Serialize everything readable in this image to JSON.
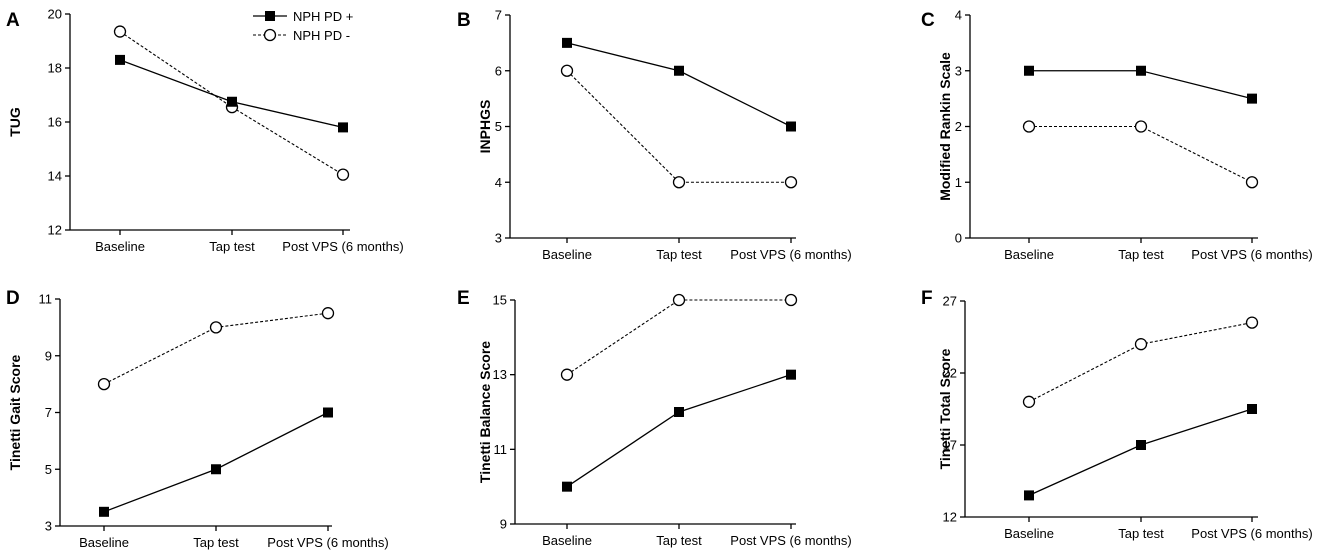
{
  "chart_data": [
    {
      "type": "line",
      "panel_label": "A",
      "ylabel": "TUG",
      "categories": [
        "Baseline",
        "Tap test",
        "Post VPS (6 months)"
      ],
      "ylim": [
        12,
        20
      ],
      "yticks": [
        12,
        14,
        16,
        18,
        20
      ],
      "series": [
        {
          "name": "NPH PD +",
          "marker": "filled-square",
          "line": "solid",
          "values": [
            18.3,
            16.75,
            15.8
          ]
        },
        {
          "name": "NPH PD -",
          "marker": "open-circle",
          "line": "dashed",
          "values": [
            19.35,
            16.55,
            14.05
          ]
        }
      ],
      "legend": {
        "position": "top-right",
        "entries": [
          "NPH PD +",
          "NPH PD -"
        ]
      }
    },
    {
      "type": "line",
      "panel_label": "B",
      "ylabel": "INPHGS",
      "categories": [
        "Baseline",
        "Tap test",
        "Post VPS (6 months)"
      ],
      "ylim": [
        3,
        7
      ],
      "yticks": [
        3,
        4,
        5,
        6,
        7
      ],
      "series": [
        {
          "name": "NPH PD +",
          "marker": "filled-square",
          "line": "solid",
          "values": [
            6.5,
            6,
            5
          ]
        },
        {
          "name": "NPH PD -",
          "marker": "open-circle",
          "line": "dashed",
          "values": [
            6,
            4,
            4
          ]
        }
      ]
    },
    {
      "type": "line",
      "panel_label": "C",
      "ylabel": "Modified Rankin Scale",
      "categories": [
        "Baseline",
        "Tap test",
        "Post VPS (6 months)"
      ],
      "ylim": [
        0,
        4
      ],
      "yticks": [
        0,
        1,
        2,
        3,
        4
      ],
      "series": [
        {
          "name": "NPH PD +",
          "marker": "filled-square",
          "line": "solid",
          "values": [
            3,
            3,
            2.5
          ]
        },
        {
          "name": "NPH PD -",
          "marker": "open-circle",
          "line": "dashed",
          "values": [
            2,
            2,
            1
          ]
        }
      ]
    },
    {
      "type": "line",
      "panel_label": "D",
      "ylabel": "Tinetti Gait Score",
      "categories": [
        "Baseline",
        "Tap test",
        "Post VPS (6 months)"
      ],
      "ylim": [
        3,
        11
      ],
      "yticks": [
        3,
        5,
        7,
        9,
        11
      ],
      "series": [
        {
          "name": "NPH PD +",
          "marker": "filled-square",
          "line": "solid",
          "values": [
            3.5,
            5,
            7
          ]
        },
        {
          "name": "NPH PD -",
          "marker": "open-circle",
          "line": "dashed",
          "values": [
            8,
            10,
            10.5
          ]
        }
      ]
    },
    {
      "type": "line",
      "panel_label": "E",
      "ylabel": "Tinetti Balance Score",
      "categories": [
        "Baseline",
        "Tap test",
        "Post VPS (6 months)"
      ],
      "ylim": [
        9,
        15
      ],
      "yticks": [
        9,
        11,
        13,
        15
      ],
      "series": [
        {
          "name": "NPH PD +",
          "marker": "filled-square",
          "line": "solid",
          "values": [
            10,
            12,
            13
          ]
        },
        {
          "name": "NPH PD -",
          "marker": "open-circle",
          "line": "dashed",
          "values": [
            13,
            15,
            15
          ]
        }
      ]
    },
    {
      "type": "line",
      "panel_label": "F",
      "ylabel": "Tinetti Total Score",
      "categories": [
        "Baseline",
        "Tap test",
        "Post VPS (6 months)"
      ],
      "ylim": [
        12,
        27
      ],
      "yticks": [
        12,
        17,
        22,
        27
      ],
      "series": [
        {
          "name": "NPH PD +",
          "marker": "filled-square",
          "line": "solid",
          "values": [
            13.5,
            17,
            19.5
          ]
        },
        {
          "name": "NPH PD -",
          "marker": "open-circle",
          "line": "dashed",
          "values": [
            20,
            24,
            25.5
          ]
        }
      ]
    }
  ]
}
